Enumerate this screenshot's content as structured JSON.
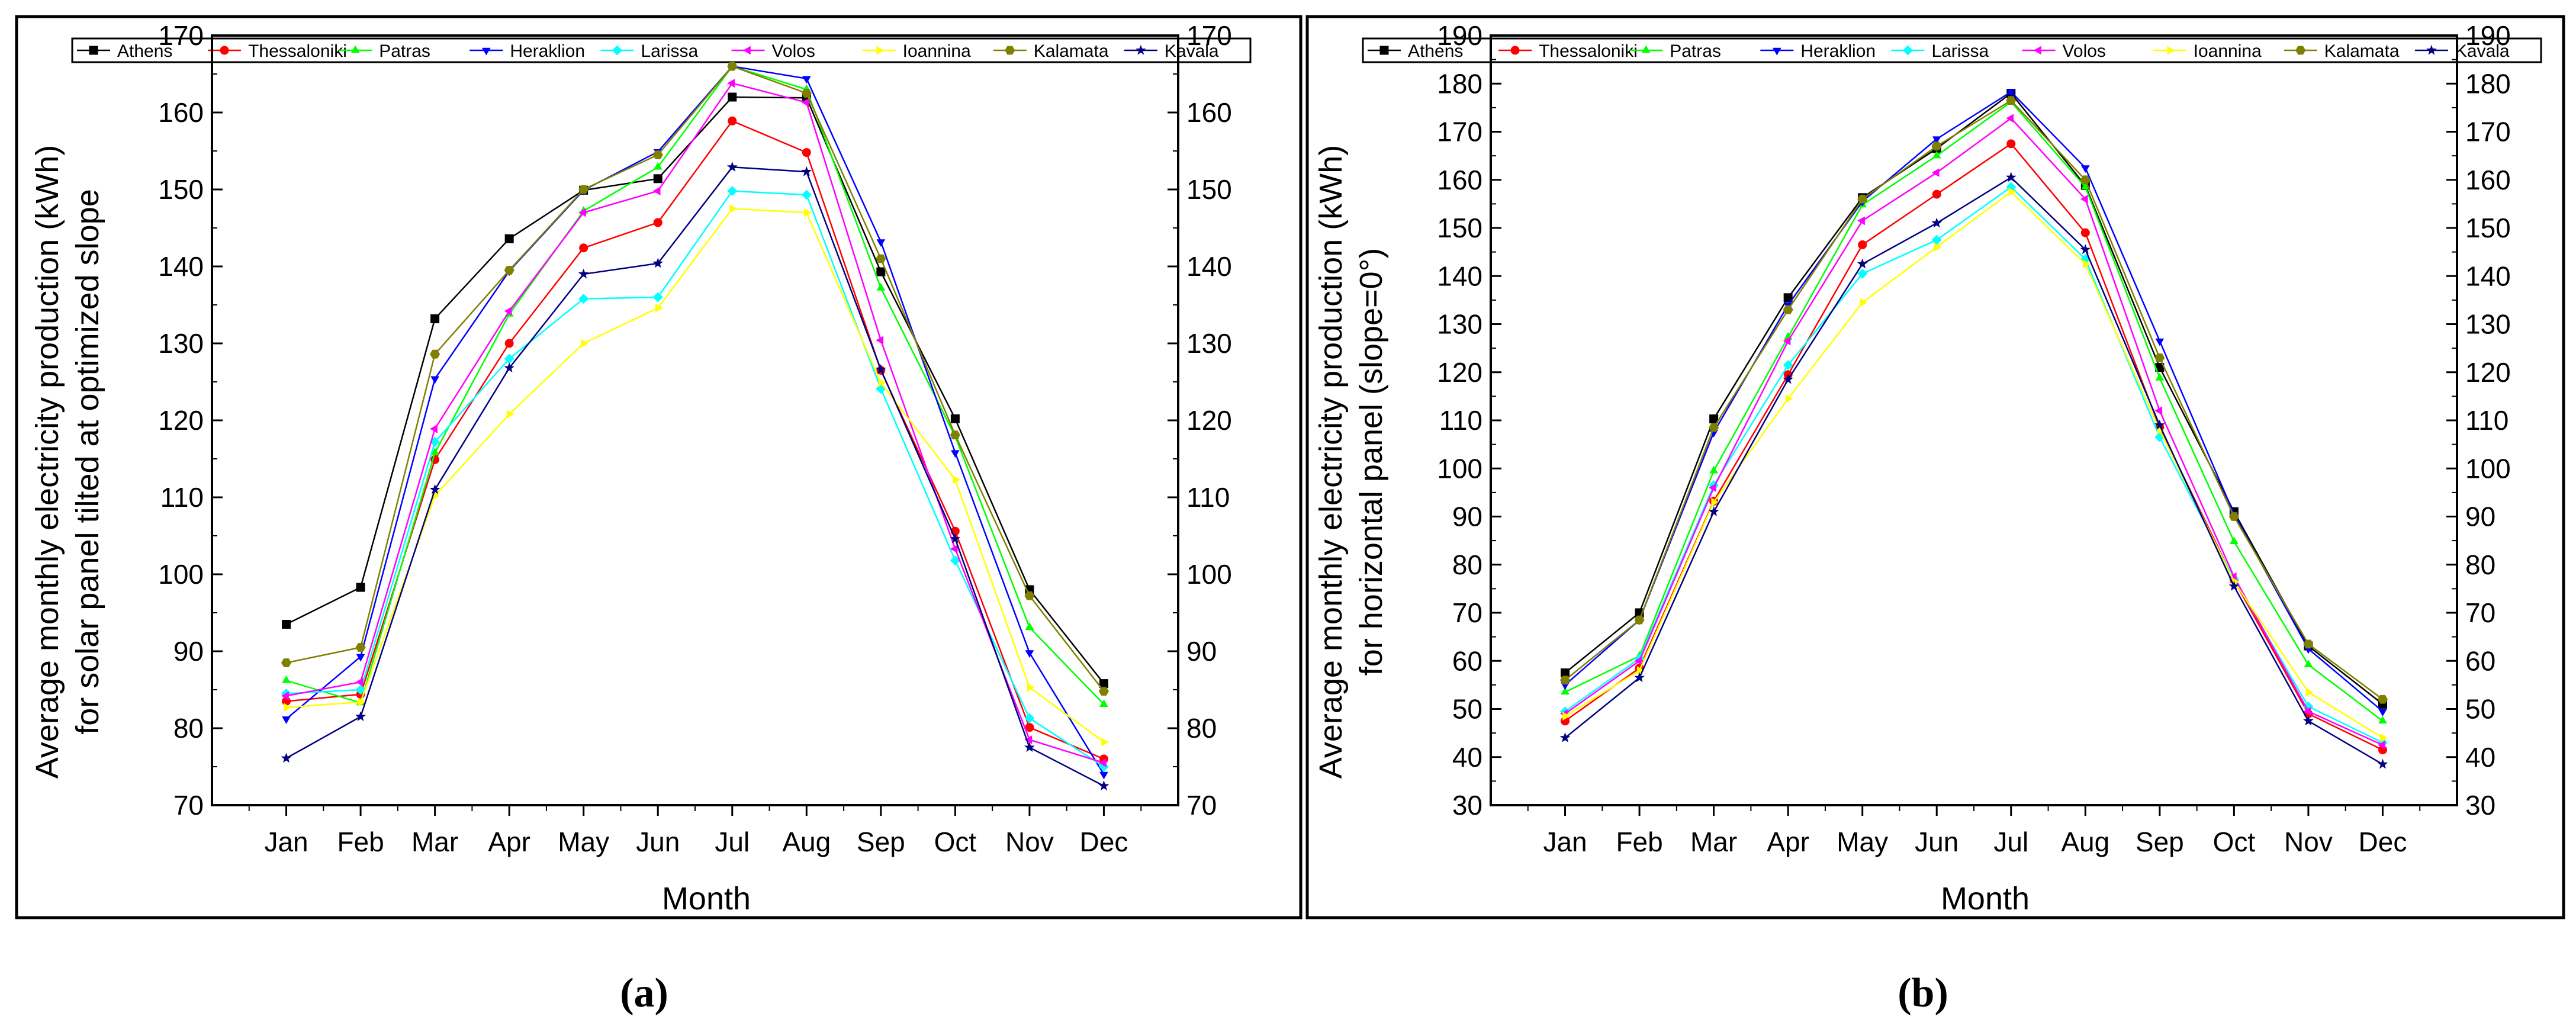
{
  "colors": {
    "Athens": "#000000",
    "Thessaloniki": "#ff0000",
    "Patras": "#00ff00",
    "Heraklion": "#0000ff",
    "Larissa": "#00ffff",
    "Volos": "#ff00ff",
    "Ioannina": "#ffff00",
    "Kalamata": "#808000",
    "Kavala": "#000080"
  },
  "chart_data": [
    {
      "type": "line",
      "panel_label": "(a)",
      "title": "",
      "xlabel": "Month",
      "ylabel_line1": "Average monthly electricity production (kWh)",
      "ylabel_line2": "for solar panel tilted at optimized slope",
      "categories": [
        "Jan",
        "Feb",
        "Mar",
        "Apr",
        "May",
        "Jun",
        "Jul",
        "Aug",
        "Sep",
        "Oct",
        "Nov",
        "Dec"
      ],
      "ylim": [
        70,
        170
      ],
      "yticks": [
        70,
        80,
        90,
        100,
        110,
        120,
        130,
        140,
        150,
        160,
        170
      ],
      "legend_position": "top",
      "series": [
        {
          "name": "Athens",
          "marker": "square",
          "values": [
            93.5,
            98.3,
            133.2,
            143.6,
            149.9,
            151.4,
            162.0,
            161.9,
            139.3,
            120.2,
            98.0,
            85.8
          ]
        },
        {
          "name": "Thessaloniki",
          "marker": "circle",
          "values": [
            83.5,
            84.4,
            114.9,
            130.0,
            142.4,
            145.7,
            158.9,
            154.8,
            126.5,
            105.6,
            80.1,
            76.0
          ]
        },
        {
          "name": "Patras",
          "marker": "triangle-up",
          "values": [
            86.2,
            83.3,
            115.8,
            133.8,
            147.2,
            152.9,
            166.0,
            163.0,
            137.2,
            117.9,
            93.1,
            83.1
          ]
        },
        {
          "name": "Heraklion",
          "marker": "triangle-down",
          "values": [
            81.2,
            89.3,
            125.4,
            139.4,
            149.9,
            154.9,
            166.0,
            164.4,
            143.2,
            115.8,
            89.8,
            74.0
          ]
        },
        {
          "name": "Larissa",
          "marker": "diamond",
          "values": [
            84.5,
            85.0,
            117.2,
            128.0,
            135.8,
            136.0,
            149.8,
            149.3,
            124.1,
            101.8,
            81.3,
            75.0
          ]
        },
        {
          "name": "Volos",
          "marker": "triangle-left",
          "values": [
            84.2,
            86.0,
            118.9,
            134.2,
            147.0,
            149.8,
            163.8,
            161.3,
            130.4,
            103.3,
            78.5,
            75.5
          ]
        },
        {
          "name": "Ioannina",
          "marker": "triangle-right",
          "values": [
            82.7,
            83.4,
            110.2,
            120.8,
            130.0,
            134.6,
            147.5,
            147.0,
            124.9,
            112.3,
            85.3,
            78.2
          ]
        },
        {
          "name": "Kalamata",
          "marker": "hexagon",
          "values": [
            88.5,
            90.5,
            128.6,
            139.5,
            150.0,
            154.5,
            166.0,
            162.5,
            141.0,
            118.1,
            97.2,
            84.8
          ]
        },
        {
          "name": "Kavala",
          "marker": "star",
          "values": [
            76.1,
            81.5,
            111.0,
            126.8,
            139.0,
            140.4,
            152.9,
            152.3,
            126.6,
            104.6,
            77.5,
            72.5
          ]
        }
      ]
    },
    {
      "type": "line",
      "panel_label": "(b)",
      "title": "",
      "xlabel": "Month",
      "ylabel_line1": "Average monthly electricity production (kWh)",
      "ylabel_line2": "for horizontal panel (slope=0°)",
      "categories": [
        "Jan",
        "Feb",
        "Mar",
        "Apr",
        "May",
        "Jun",
        "Jul",
        "Aug",
        "Sep",
        "Oct",
        "Nov",
        "Dec"
      ],
      "ylim": [
        30,
        190
      ],
      "yticks": [
        30,
        40,
        50,
        60,
        70,
        80,
        90,
        100,
        110,
        120,
        130,
        140,
        150,
        160,
        170,
        180,
        190
      ],
      "legend_position": "top",
      "series": [
        {
          "name": "Athens",
          "marker": "square",
          "values": [
            57.5,
            70.0,
            110.3,
            135.5,
            156.3,
            166.5,
            178.0,
            158.8,
            121.0,
            91.0,
            63.1,
            51.0
          ]
        },
        {
          "name": "Thessaloniki",
          "marker": "circle",
          "values": [
            47.5,
            58.5,
            93.2,
            119.5,
            146.5,
            157.0,
            167.5,
            149.0,
            108.5,
            76.8,
            49.0,
            41.5
          ]
        },
        {
          "name": "Patras",
          "marker": "triangle-up",
          "values": [
            53.5,
            61.0,
            99.5,
            127.3,
            154.8,
            165.0,
            176.2,
            158.5,
            118.8,
            84.8,
            59.2,
            47.5
          ]
        },
        {
          "name": "Heraklion",
          "marker": "triangle-down",
          "values": [
            55.0,
            68.5,
            107.5,
            134.0,
            155.5,
            168.5,
            178.3,
            162.5,
            126.5,
            90.5,
            62.5,
            49.5
          ]
        },
        {
          "name": "Larissa",
          "marker": "diamond",
          "values": [
            49.5,
            60.5,
            96.5,
            121.5,
            140.5,
            147.5,
            158.5,
            143.5,
            106.5,
            77.0,
            50.5,
            43.0
          ]
        },
        {
          "name": "Volos",
          "marker": "triangle-left",
          "values": [
            49.0,
            60.0,
            96.0,
            126.5,
            151.5,
            161.5,
            172.8,
            156.0,
            112.0,
            77.5,
            49.5,
            42.5
          ]
        },
        {
          "name": "Ioannina",
          "marker": "triangle-right",
          "values": [
            48.5,
            58.0,
            93.0,
            114.5,
            134.5,
            146.0,
            157.5,
            142.5,
            108.0,
            76.5,
            53.5,
            44.0
          ]
        },
        {
          "name": "Kalamata",
          "marker": "hexagon",
          "values": [
            56.0,
            68.5,
            108.5,
            133.0,
            156.0,
            167.0,
            176.5,
            160.0,
            123.0,
            90.0,
            63.5,
            52.0
          ]
        },
        {
          "name": "Kavala",
          "marker": "star",
          "values": [
            44.0,
            56.5,
            91.0,
            118.5,
            142.5,
            151.0,
            160.5,
            145.5,
            109.0,
            75.5,
            47.5,
            38.5
          ]
        }
      ]
    }
  ]
}
